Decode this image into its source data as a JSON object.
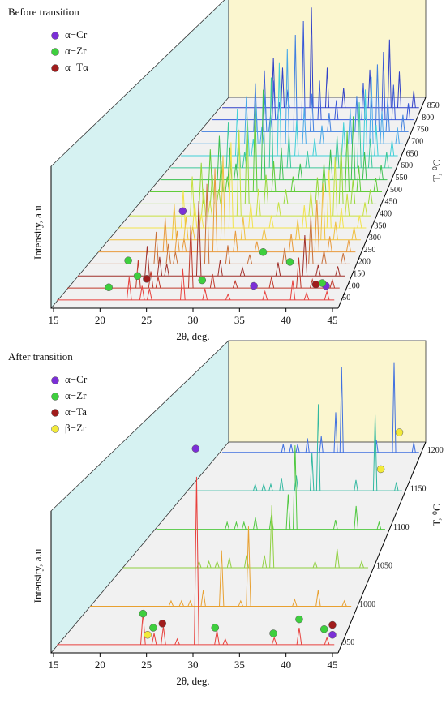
{
  "chart_data": [
    {
      "type": "waterfall",
      "title": "Before transition",
      "xlabel": "2θ, deg.",
      "ylabel": "Intensity, a.u.",
      "zlabel": "T, ⁰C",
      "xlim": [
        15,
        45
      ],
      "xticks": [
        15,
        20,
        25,
        30,
        35,
        40,
        45
      ],
      "ylim": [
        0,
        100
      ],
      "zlim": [
        50,
        850
      ],
      "x": [
        22.8,
        24.2,
        25,
        28.6,
        31,
        33.5,
        37.5,
        40.5,
        42,
        44.2
      ],
      "series": [
        {
          "z": 50,
          "color": "#e8403c",
          "values": [
            16,
            10,
            8,
            22,
            8,
            4,
            6,
            14,
            5,
            6
          ]
        },
        {
          "z": 100,
          "color": "#c0392b",
          "values": [
            20,
            12,
            8,
            45,
            10,
            5,
            8,
            22,
            6,
            6
          ]
        },
        {
          "z": 150,
          "color": "#a0302a",
          "values": [
            22,
            14,
            9,
            55,
            12,
            6,
            10,
            30,
            8,
            7
          ]
        },
        {
          "z": 200,
          "color": "#c8703a",
          "values": [
            24,
            15,
            9,
            60,
            14,
            7,
            12,
            36,
            10,
            8
          ]
        },
        {
          "z": 250,
          "color": "#e89a3c",
          "values": [
            26,
            16,
            10,
            64,
            16,
            8,
            14,
            40,
            12,
            9
          ]
        },
        {
          "z": 300,
          "color": "#f0c040",
          "values": [
            28,
            18,
            10,
            66,
            18,
            9,
            16,
            44,
            14,
            10
          ]
        },
        {
          "z": 350,
          "color": "#f2e24a",
          "values": [
            30,
            20,
            11,
            68,
            20,
            10,
            18,
            46,
            16,
            10
          ]
        },
        {
          "z": 400,
          "color": "#c8e040",
          "values": [
            32,
            22,
            12,
            70,
            22,
            11,
            20,
            48,
            18,
            11
          ]
        },
        {
          "z": 450,
          "color": "#98d83a",
          "values": [
            34,
            24,
            12,
            72,
            24,
            12,
            22,
            50,
            20,
            12
          ]
        },
        {
          "z": 500,
          "color": "#60cc3a",
          "values": [
            36,
            26,
            13,
            75,
            26,
            13,
            24,
            52,
            22,
            12
          ]
        },
        {
          "z": 550,
          "color": "#3cc050",
          "values": [
            38,
            28,
            14,
            78,
            28,
            14,
            26,
            55,
            24,
            13
          ]
        },
        {
          "z": 600,
          "color": "#3cc89a",
          "values": [
            40,
            30,
            14,
            80,
            30,
            15,
            28,
            58,
            26,
            14
          ]
        },
        {
          "z": 650,
          "color": "#40d0d8",
          "values": [
            42,
            32,
            15,
            84,
            32,
            16,
            30,
            60,
            28,
            14
          ]
        },
        {
          "z": 700,
          "color": "#48a8e8",
          "values": [
            44,
            34,
            16,
            88,
            34,
            17,
            32,
            62,
            30,
            15
          ]
        },
        {
          "z": 750,
          "color": "#4080e0",
          "values": [
            46,
            36,
            16,
            92,
            36,
            18,
            34,
            64,
            32,
            16
          ]
        },
        {
          "z": 800,
          "color": "#3858d8",
          "values": [
            48,
            38,
            17,
            96,
            38,
            19,
            36,
            66,
            34,
            16
          ]
        },
        {
          "z": 850,
          "color": "#3040c8",
          "values": [
            50,
            40,
            18,
            100,
            40,
            20,
            38,
            68,
            36,
            17
          ]
        }
      ],
      "markers": [
        {
          "name": "α−Cr",
          "color": "#7b2fd6",
          "points": [
            [
              28.6,
              50,
              63
            ],
            [
              36.3,
              50,
              10
            ],
            [
              44.1,
              50,
              10
            ]
          ]
        },
        {
          "name": "α−Zr",
          "color": "#3ecf3e",
          "points": [
            [
              22.7,
              50,
              28
            ],
            [
              20.6,
              50,
              9
            ],
            [
              23.7,
              50,
              17
            ],
            [
              30.7,
              50,
              14
            ],
            [
              37.3,
              50,
              34
            ],
            [
              40.2,
              50,
              27
            ],
            [
              43.7,
              50,
              12
            ]
          ]
        },
        {
          "name": "α−Tα",
          "color": "#a01c1c",
          "points": [
            [
              24.7,
              50,
              15
            ],
            [
              43,
              50,
              11
            ]
          ]
        }
      ]
    },
    {
      "type": "waterfall",
      "title": "After transition",
      "xlabel": "2θ, deg.",
      "ylabel": "Intensity, a.u",
      "zlabel": "T, ⁰C",
      "xlim": [
        15,
        45
      ],
      "xticks": [
        15,
        20,
        25,
        30,
        35,
        40,
        45
      ],
      "ylim": [
        0,
        100
      ],
      "zlim": [
        950,
        1200
      ],
      "x": [
        24.3,
        25.5,
        26.5,
        28,
        30.1,
        32.3,
        33.2,
        38.5,
        41.2,
        44.2
      ],
      "series": [
        {
          "z": 950,
          "color": "#e8403c",
          "values": [
            23,
            8,
            13,
            4,
            119,
            10,
            4,
            5,
            12,
            5
          ]
        },
        {
          "z": 1000,
          "color": "#e8a030",
          "values": [
            4,
            4,
            4,
            12,
            42,
            4,
            60,
            5,
            12,
            4
          ]
        },
        {
          "z": 1050,
          "color": "#90d040",
          "values": [
            5,
            5,
            5,
            8,
            10,
            10,
            50,
            5,
            15,
            5
          ]
        },
        {
          "z": 1100,
          "color": "#50c840",
          "values": [
            6,
            6,
            6,
            10,
            12,
            30,
            72,
            8,
            20,
            6
          ]
        },
        {
          "z": 1150,
          "color": "#30b8a0",
          "values": [
            6,
            6,
            6,
            12,
            14,
            35,
            80,
            10,
            70,
            8
          ]
        },
        {
          "z": 1200,
          "color": "#4070e0",
          "values": [
            8,
            8,
            8,
            14,
            16,
            40,
            85,
            12,
            90,
            10
          ]
        }
      ],
      "markers": [
        {
          "name": "α−Cr",
          "color": "#7b2fd6",
          "points": [
            [
              30,
              950,
              139
            ],
            [
              44.8,
              950,
              7
            ]
          ]
        },
        {
          "name": "α−Zr",
          "color": "#3ecf3e",
          "points": [
            [
              24.3,
              950,
              22
            ],
            [
              25.4,
              950,
              12
            ],
            [
              32.1,
              950,
              12
            ],
            [
              38.4,
              950,
              8
            ],
            [
              41.2,
              950,
              18
            ],
            [
              43.9,
              950,
              11
            ]
          ]
        },
        {
          "name": "α−Ta",
          "color": "#a01c1c",
          "points": [
            [
              26.4,
              950,
              15
            ],
            [
              44.8,
              950,
              14
            ]
          ]
        },
        {
          "name": "β−Zr",
          "color": "#f2ea3a",
          "points": [
            [
              24.8,
              950,
              7
            ],
            [
              42,
              1150,
              20
            ],
            [
              42,
              1200,
              20
            ]
          ]
        }
      ]
    }
  ]
}
